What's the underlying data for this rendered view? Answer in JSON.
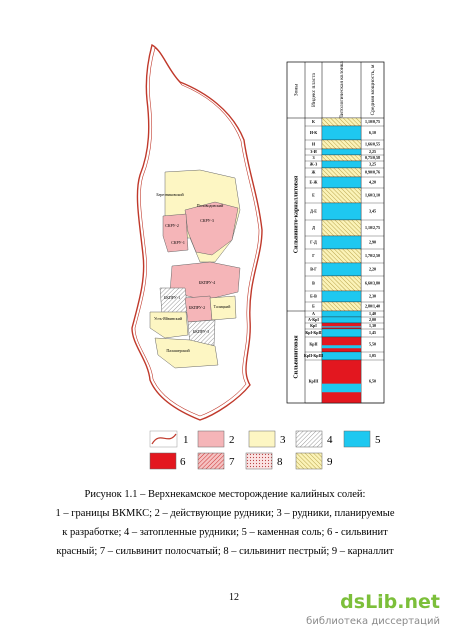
{
  "figure": {
    "map_labels": [
      "Березниковский",
      "Половодовский",
      "СКРУ-2",
      "СКРУ-3",
      "СКРУ-1",
      "БКПРУ-4",
      "БКПРУ-1",
      "БКПРУ-2",
      "Талицкий",
      "Усть-Яйвинский",
      "БКПРУ-3",
      "Палашерский"
    ],
    "column": {
      "headers": [
        "Зоны",
        "Индекс пласта",
        "Литологическая колонка",
        "Средняя мощность, м"
      ],
      "zones": [
        "Сильвинито-карналлитовая",
        "Сильвинитовая"
      ],
      "rows": [
        {
          "index": "К",
          "thickness": "1,10/0,75"
        },
        {
          "index": "И-К",
          "thickness": "6,10"
        },
        {
          "index": "И",
          "thickness": "1,66/0,55"
        },
        {
          "index": "З-И",
          "thickness": "2,25"
        },
        {
          "index": "З",
          "thickness": "0,75/0,58"
        },
        {
          "index": "Ж-З",
          "thickness": "3,25"
        },
        {
          "index": "Ж",
          "thickness": "0,90/0,76"
        },
        {
          "index": "Е-Ж",
          "thickness": "4,20"
        },
        {
          "index": "Е",
          "thickness": "1,60/3,10"
        },
        {
          "index": "Д-Е",
          "thickness": "3,45"
        },
        {
          "index": "Д",
          "thickness": "1,10/2,75"
        },
        {
          "index": "Г-Д",
          "thickness": "2,90"
        },
        {
          "index": "Г",
          "thickness": "1,70/2,50"
        },
        {
          "index": "В-Г",
          "thickness": "2,20"
        },
        {
          "index": "В",
          "thickness": "6,60/3,80"
        },
        {
          "index": "Б-В",
          "thickness": "2,30"
        },
        {
          "index": "Б",
          "thickness": "2,80/1,40"
        },
        {
          "index": "А",
          "thickness": "1,40"
        },
        {
          "index": "А-КрI",
          "thickness": "2,00"
        },
        {
          "index": "КрI",
          "thickness": "1,30"
        },
        {
          "index": "КрI-КрII",
          "thickness": "1,45"
        },
        {
          "index": "КрII",
          "thickness": "5,50"
        },
        {
          "index": "КрII-КрIII",
          "thickness": "1,05"
        },
        {
          "index": "КрIII",
          "thickness": "6,50"
        }
      ]
    },
    "legend": [
      "1",
      "2",
      "3",
      "4",
      "5",
      "6",
      "7",
      "8",
      "9"
    ]
  },
  "caption": {
    "title": "Рисунок 1.1 – Верхнекамское месторождение калийных солей:",
    "lines": [
      "1 – границы ВКМКС; 2 – действующие рудники; 3 – рудники, планируемые",
      "к разработке; 4 – затопленные рудники; 5 – каменная соль; 6 - сильвинит",
      "красный; 7 – сильвинит полосчатый; 8 – сильвинит пестрый; 9 – карналлит"
    ]
  },
  "page_number": "12",
  "watermark": {
    "site": "dsLib.net",
    "tagline": "библиотека диссертаций"
  }
}
